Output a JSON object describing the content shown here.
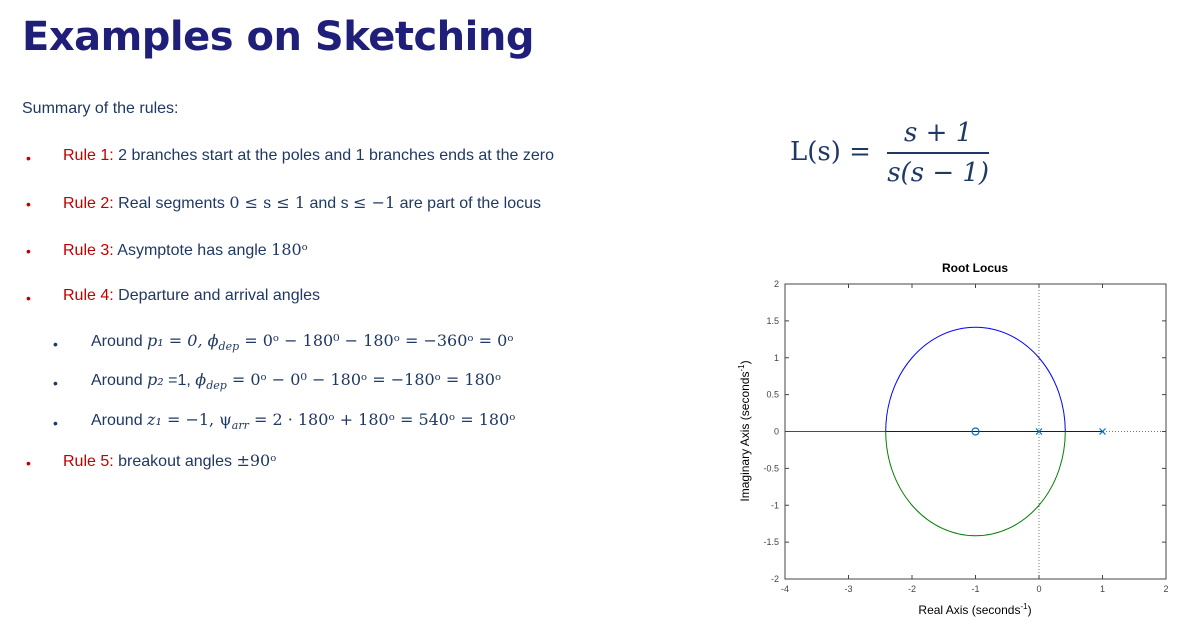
{
  "slide": {
    "title": "Examples on Sketching",
    "summary": "Summary of the rules:",
    "rules": [
      {
        "key": "Rule 1:",
        "text": " 2 branches start at the poles and 1 branches ends at the zero"
      },
      {
        "key": "Rule 2:",
        "pre": " Real segments ",
        "m1": "0 ≤ s ≤ 1",
        "mid": " and s ",
        "m2": "≤ −1",
        "post": " are part of the locus"
      },
      {
        "key": "Rule 3:",
        "pre": " Asymptote has angle ",
        "m1": "180ᵒ"
      },
      {
        "key": "Rule 4:",
        "text": " Departure and arrival angles"
      },
      {
        "key": "Rule 5:",
        "pre": " breakout angles ",
        "m1": "±90ᵒ"
      }
    ],
    "sub": [
      {
        "pre": "Around ",
        "m": "p₁ = 0, ϕ",
        "sub": "dep",
        "m2": " = 0ᵒ − 180⁰ − 180ᵒ = −360ᵒ = 0ᵒ"
      },
      {
        "pre": "Around ",
        "m": "p₂",
        "mid": " =1, ",
        "m1": "ϕ",
        "sub": "dep",
        "m2": " = 0ᵒ − 0⁰ − 180ᵒ = −180ᵒ = 180ᵒ"
      },
      {
        "pre": "Around ",
        "m": "z₁",
        "m1": " = −1, ψ",
        "sub": "arr",
        "m2": " = 2 · 180ᵒ + 180ᵒ = 540ᵒ = 180ᵒ"
      }
    ],
    "formula": {
      "lhs": "L(s) =",
      "num": "s + 1",
      "den": "s(s − 1)"
    }
  },
  "chart_data": {
    "type": "line",
    "title": "Root Locus",
    "xlabel": "Real Axis (seconds",
    "ylabel": "Imaginary Axis (seconds",
    "unit_sup": "-1",
    "xlim": [
      -4,
      2
    ],
    "ylim": [
      -2,
      2
    ],
    "xticks": [
      "-4",
      "-3",
      "-2",
      "-1",
      "0",
      "1",
      "2"
    ],
    "yticks": [
      "2",
      "1.5",
      "1",
      "0.5",
      "0",
      "-0.5",
      "-1",
      "-1.5",
      "-2"
    ],
    "circle": {
      "center": [
        -1,
        0
      ],
      "radius": 1.414
    },
    "poles": [
      [
        0,
        0
      ],
      [
        1,
        0
      ]
    ],
    "zeros": [
      [
        -1,
        0
      ]
    ],
    "series": [
      {
        "color": "#0000ff"
      },
      {
        "color": "#008000"
      }
    ]
  }
}
